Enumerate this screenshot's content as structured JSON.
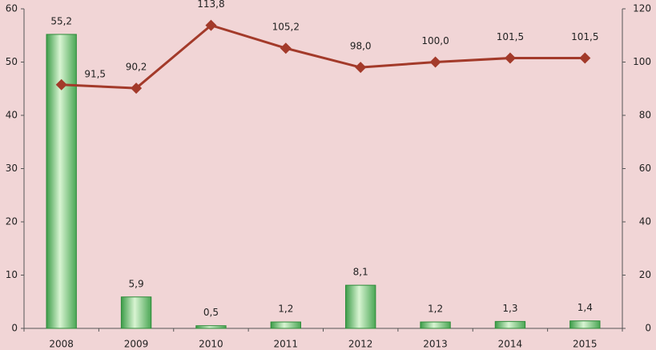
{
  "chart_data": {
    "type": "bar",
    "categories": [
      "2008",
      "2009",
      "2010",
      "2011",
      "2012",
      "2013",
      "2014",
      "2015"
    ],
    "series": [
      {
        "type": "bar",
        "color": "#2e8b3a",
        "values": [
          55.2,
          5.9,
          0.5,
          1.2,
          8.1,
          1.2,
          1.3,
          1.4
        ],
        "value_labels": [
          "55,2",
          "5,9",
          "0,5",
          "1,2",
          "8,1",
          "1,2",
          "1,3",
          "1,4"
        ]
      },
      {
        "type": "line",
        "axis": "y2",
        "color": "#a33a2a",
        "values": [
          91.5,
          90.2,
          113.8,
          105.2,
          98.0,
          100.0,
          101.5,
          101.5
        ],
        "value_labels": [
          "91,5",
          "90,2",
          "113,8",
          "105,2",
          "98,0",
          "100,0",
          "101,5",
          "101,5"
        ]
      }
    ],
    "ylim": [
      0,
      60
    ],
    "yticks": [
      0,
      10,
      20,
      30,
      40,
      50,
      60
    ],
    "y2lim": [
      0,
      120
    ],
    "y2ticks": [
      0,
      20,
      40,
      60,
      80,
      100,
      120
    ]
  }
}
